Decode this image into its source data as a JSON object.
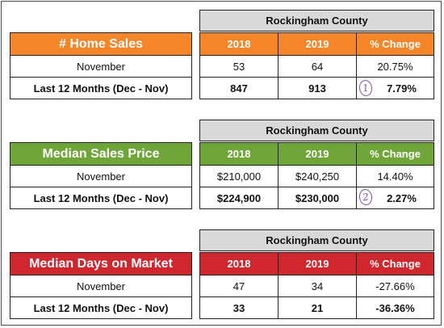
{
  "colors": {
    "orange": "#f58528",
    "green": "#70a53a",
    "red": "#d0272f",
    "county_header_gray": "#d9d9d9",
    "annotation_purple": "#7b4fb3"
  },
  "tables": [
    {
      "title": "# Home Sales",
      "county": "Rockingham County",
      "headers": [
        "2018",
        "2019",
        "% Change"
      ],
      "rows": [
        {
          "label": "November",
          "v2018": "53",
          "v2019": "64",
          "change": "20.75%"
        },
        {
          "label": "Last 12 Months (Dec - Nov)",
          "v2018": "847",
          "v2019": "913",
          "change": "7.79%"
        }
      ],
      "annotation": "1"
    },
    {
      "title": "Median Sales Price",
      "county": "Rockingham County",
      "headers": [
        "2018",
        "2019",
        "% Change"
      ],
      "rows": [
        {
          "label": "November",
          "v2018": "$210,000",
          "v2019": "$240,250",
          "change": "14.40%"
        },
        {
          "label": "Last 12 Months (Dec - Nov)",
          "v2018": "$224,900",
          "v2019": "$230,000",
          "change": "2.27%"
        }
      ],
      "annotation": "2"
    },
    {
      "title": "Median Days on Market",
      "county": "Rockingham County",
      "headers": [
        "2018",
        "2019",
        "% Change"
      ],
      "rows": [
        {
          "label": "November",
          "v2018": "47",
          "v2019": "34",
          "change": "-27.66%"
        },
        {
          "label": "Last 12 Months (Dec - Nov)",
          "v2018": "33",
          "v2019": "21",
          "change": "-36.36%"
        }
      ]
    }
  ]
}
